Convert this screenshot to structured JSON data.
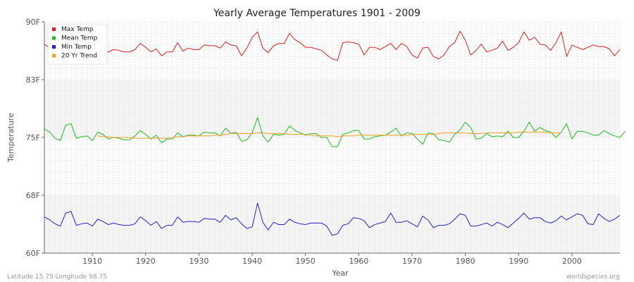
{
  "chart_data": {
    "type": "line",
    "title": "Yearly Average Temperatures 1901 - 2009",
    "xlabel": "Year",
    "ylabel": "Temperature",
    "xlim": [
      1901,
      2009
    ],
    "ylim": [
      60,
      90
    ],
    "x_ticks": [
      {
        "value": 1910,
        "label": "1910"
      },
      {
        "value": 1920,
        "label": "1920"
      },
      {
        "value": 1930,
        "label": "1930"
      },
      {
        "value": 1940,
        "label": "1940"
      },
      {
        "value": 1950,
        "label": "1950"
      },
      {
        "value": 1960,
        "label": "1960"
      },
      {
        "value": 1970,
        "label": "1970"
      },
      {
        "value": 1980,
        "label": "1980"
      },
      {
        "value": 1990,
        "label": "1990"
      },
      {
        "value": 2000,
        "label": "2000"
      }
    ],
    "y_ticks": [
      {
        "value": 60,
        "label": "60F"
      },
      {
        "value": 67.5,
        "label": "68F"
      },
      {
        "value": 75,
        "label": "75F"
      },
      {
        "value": 82.5,
        "label": "83F"
      },
      {
        "value": 90,
        "label": "90F"
      }
    ],
    "grid": true,
    "legend_position": "top-left",
    "series": [
      {
        "name": "Max Temp",
        "color": "#e02020",
        "x_start": 1901,
        "values": [
          87.1,
          86.6,
          86.2,
          86.6,
          86.3,
          86.3,
          85.3,
          85.9,
          86.2,
          86.9,
          85.6,
          86.3,
          86.1,
          86.4,
          86.3,
          86.1,
          86.1,
          86.4,
          87.2,
          86.7,
          86.1,
          86.5,
          85.6,
          86.1,
          86.1,
          87.3,
          86.2,
          86.6,
          86.4,
          86.4,
          87.0,
          86.9,
          86.9,
          86.6,
          87.4,
          87.0,
          86.9,
          85.6,
          86.6,
          88.0,
          88.7,
          86.6,
          86.0,
          86.9,
          87.2,
          87.2,
          88.5,
          87.7,
          87.3,
          86.7,
          86.7,
          86.5,
          86.3,
          85.7,
          85.2,
          85.0,
          87.3,
          87.4,
          87.3,
          87.1,
          85.7,
          86.7,
          86.7,
          86.4,
          86.8,
          87.2,
          86.4,
          87.2,
          86.8,
          85.7,
          85.3,
          86.6,
          86.7,
          85.5,
          85.2,
          85.7,
          86.8,
          87.3,
          88.8,
          87.6,
          85.7,
          86.3,
          87.1,
          86.1,
          86.3,
          86.6,
          87.5,
          86.3,
          86.7,
          87.3,
          88.7,
          87.6,
          88.0,
          87.1,
          87.0,
          86.3,
          87.3,
          88.7,
          85.5,
          87.0,
          86.7,
          86.4,
          86.7,
          87.0,
          86.8,
          86.8,
          86.5,
          85.6,
          86.4
        ]
      },
      {
        "name": "Mean Temp",
        "color": "#22bb22",
        "x_start": 1901,
        "values": [
          76.1,
          75.7,
          74.9,
          74.6,
          76.6,
          76.8,
          74.9,
          75.1,
          75.2,
          74.6,
          75.7,
          75.4,
          74.8,
          75.0,
          74.9,
          74.7,
          74.7,
          75.2,
          75.9,
          75.4,
          74.8,
          75.3,
          74.3,
          74.8,
          74.8,
          75.6,
          75.1,
          75.3,
          75.3,
          75.2,
          75.7,
          75.6,
          75.6,
          75.2,
          76.2,
          75.5,
          75.7,
          74.5,
          74.7,
          75.6,
          77.6,
          75.2,
          74.4,
          75.4,
          75.3,
          75.4,
          76.5,
          75.9,
          75.6,
          75.3,
          75.5,
          75.5,
          75.0,
          75.0,
          73.8,
          73.8,
          75.4,
          75.6,
          75.9,
          75.9,
          74.8,
          74.8,
          75.1,
          75.2,
          75.3,
          75.7,
          76.2,
          75.2,
          75.6,
          75.5,
          74.8,
          74.1,
          75.6,
          75.5,
          74.7,
          74.6,
          74.4,
          75.4,
          76.0,
          77.0,
          76.3,
          74.8,
          74.9,
          75.5,
          75.1,
          75.2,
          75.1,
          75.8,
          75.0,
          75.0,
          75.8,
          77.0,
          75.8,
          76.3,
          75.9,
          75.7,
          75.0,
          75.7,
          76.8,
          74.8,
          75.8,
          75.8,
          75.6,
          75.3,
          75.3,
          75.9,
          75.5,
          75.2,
          75.0,
          75.8
        ]
      },
      {
        "name": "Min Temp",
        "color": "#2222cc",
        "x_start": 1901,
        "values": [
          64.7,
          64.3,
          63.8,
          63.5,
          65.2,
          65.4,
          63.6,
          63.8,
          63.9,
          63.5,
          64.4,
          64.1,
          63.7,
          63.9,
          63.7,
          63.6,
          63.6,
          63.8,
          64.7,
          64.2,
          63.6,
          64.1,
          63.2,
          63.6,
          63.6,
          64.7,
          64.0,
          64.1,
          64.1,
          64.0,
          64.5,
          64.4,
          64.4,
          64.0,
          64.9,
          64.3,
          64.6,
          63.8,
          63.2,
          63.4,
          66.5,
          64.0,
          63.0,
          64.0,
          63.7,
          63.7,
          64.4,
          64.0,
          63.8,
          63.7,
          63.9,
          63.9,
          63.9,
          63.5,
          62.3,
          62.5,
          63.6,
          63.8,
          64.6,
          64.5,
          64.2,
          63.3,
          63.7,
          63.9,
          64.1,
          65.2,
          64.0,
          64.0,
          64.2,
          63.8,
          63.4,
          64.8,
          64.3,
          63.3,
          63.6,
          63.6,
          63.8,
          64.4,
          65.1,
          64.9,
          63.5,
          63.5,
          63.7,
          63.9,
          63.5,
          64.0,
          63.7,
          63.3,
          63.9,
          64.5,
          65.2,
          64.4,
          64.6,
          64.6,
          64.1,
          63.9,
          64.2,
          64.8,
          64.3,
          64.7,
          65.1,
          64.9,
          63.8,
          63.7,
          65.1,
          64.5,
          64.1,
          64.4,
          64.9
        ]
      },
      {
        "name": "20 Yr Trend",
        "color": "#f5a020",
        "x_start": 1911,
        "values": [
          75.2,
          75.1,
          75.1,
          75.0,
          75.0,
          75.0,
          75.0,
          74.9,
          74.9,
          74.9,
          74.9,
          74.9,
          74.9,
          74.9,
          75.0,
          75.1,
          75.1,
          75.2,
          75.2,
          75.2,
          75.2,
          75.2,
          75.3,
          75.3,
          75.4,
          75.5,
          75.5,
          75.5,
          75.5,
          75.5,
          75.6,
          75.6,
          75.5,
          75.5,
          75.5,
          75.5,
          75.4,
          75.4,
          75.4,
          75.4,
          75.3,
          75.2,
          75.2,
          75.2,
          75.2,
          75.1,
          75.2,
          75.2,
          75.2,
          75.3,
          75.3,
          75.3,
          75.3,
          75.3,
          75.3,
          75.3,
          75.3,
          75.3,
          75.3,
          75.4,
          75.4,
          75.4,
          75.4,
          75.4,
          75.5,
          75.6,
          75.6,
          75.6,
          75.6,
          75.6,
          75.5,
          75.5,
          75.5,
          75.6,
          75.6,
          75.6,
          75.6,
          75.6,
          75.6,
          75.7,
          75.7,
          75.7,
          75.7,
          75.7,
          75.7,
          75.6,
          75.6,
          75.6
        ]
      }
    ]
  },
  "footer": {
    "location": "Latitude 15.75 Longitude 98.75",
    "source": "worldspecies.org"
  }
}
